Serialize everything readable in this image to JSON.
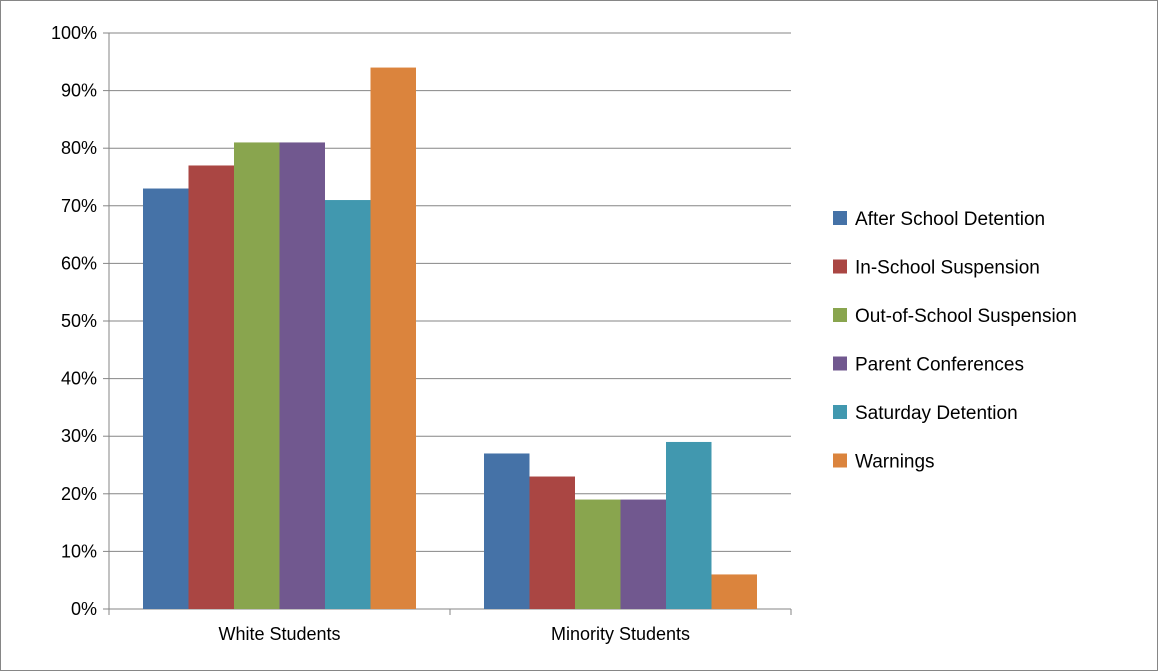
{
  "chart_data": {
    "type": "bar",
    "title": "",
    "xlabel": "",
    "ylabel": "",
    "categories": [
      "White Students",
      "Minority Students"
    ],
    "series": [
      {
        "name": "After School Detention",
        "color": "#4572A7",
        "values": [
          73,
          27
        ]
      },
      {
        "name": "In-School Suspension",
        "color": "#AA4643",
        "values": [
          77,
          23
        ]
      },
      {
        "name": "Out-of-School Suspension",
        "color": "#89A54E",
        "values": [
          81,
          19
        ]
      },
      {
        "name": "Parent Conferences",
        "color": "#71588F",
        "values": [
          81,
          19
        ]
      },
      {
        "name": "Saturday Detention",
        "color": "#4198AF",
        "values": [
          71,
          29
        ]
      },
      {
        "name": "Warnings",
        "color": "#DB843D",
        "values": [
          94,
          6
        ]
      }
    ],
    "ylim": [
      0,
      100
    ],
    "yticks": [
      "0%",
      "10%",
      "20%",
      "30%",
      "40%",
      "50%",
      "60%",
      "70%",
      "80%",
      "90%",
      "100%"
    ],
    "grid": true,
    "legend_position": "right"
  }
}
